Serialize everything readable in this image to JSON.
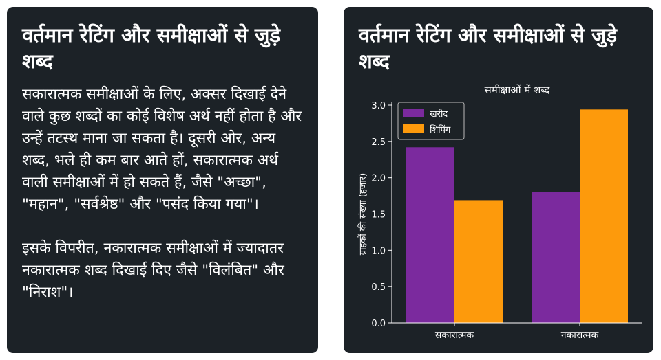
{
  "left_panel": {
    "title": "वर्तमान रेटिंग और समीक्षाओं से जुड़े शब्द",
    "paragraphs": [
      "सकारात्मक समीक्षाओं के लिए, अक्सर दिखाई देने वाले कुछ शब्दों का कोई विशेष अर्थ नहीं होता है और उन्हें तटस्थ माना जा सकता है। दूसरी ओर, अन्य शब्द, भले ही कम बार आते हों, सकारात्मक अर्थ वाली समीक्षाओं में हो सकते हैं, जैसे \"अच्छा\", \"महान\", \"सर्वश्रेष्ठ\" और \"पसंद किया गया\"।",
      "इसके विपरीत, नकारात्मक समीक्षाओं में ज्यादातर नकारात्मक शब्द दिखाई दिए जैसे \"विलंबित\" और \"निराश\"।"
    ]
  },
  "right_panel": {
    "title": "वर्तमान रेटिंग और समीक्षाओं से जुड़े शब्द"
  },
  "colors": {
    "panel_bg": "#1c2227",
    "series_1": "#7b2a9e",
    "series_2": "#fd9a0c"
  },
  "chart_data": {
    "type": "bar",
    "title": "समीक्षाओं में शब्द",
    "ylabel": "ग्राहकों की संख्या (हजार)",
    "xlabel": "",
    "categories": [
      "सकारात्मक",
      "नकारात्मक"
    ],
    "series": [
      {
        "name": "खरीद",
        "values": [
          2.42,
          1.8
        ]
      },
      {
        "name": "शिपिंग",
        "values": [
          1.69,
          2.94
        ]
      }
    ],
    "ylim": [
      0,
      3.0
    ],
    "yticks": [
      "0.0",
      "0.5",
      "1.0",
      "1.5",
      "2.0",
      "2.5",
      "3.0"
    ],
    "grid": false,
    "legend": "top-left"
  }
}
